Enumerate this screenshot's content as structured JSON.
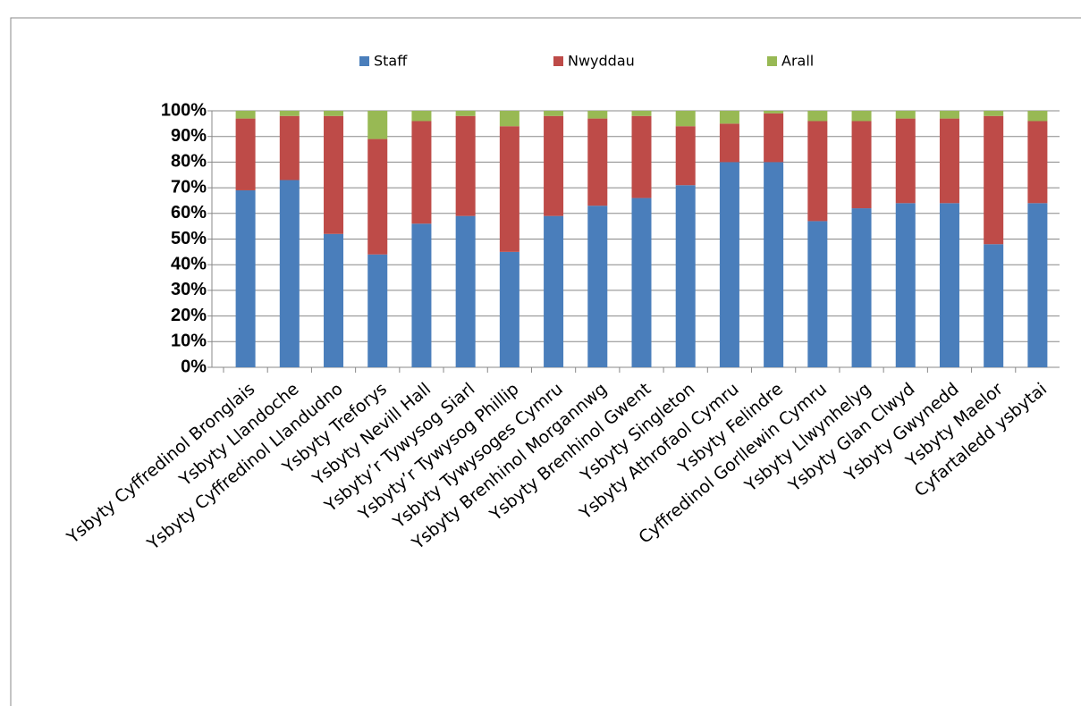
{
  "chart_data": {
    "type": "stacked_bar",
    "categories": [
      "Ysbyty Cyffredinol Bronglais",
      "Ysbyty Llandoche",
      "Ysbyty Cyffredinol Llandudno",
      "Ysbyty Treforys",
      "Ysbyty Nevill Hall",
      "Ysbyty’r Tywysog Siarl",
      "Ysbyty’r Tywysog Phillip",
      "Ysbyty Tywysoges Cymru",
      "Ysbyty Brenhinol Morgannwg",
      "Ysbyty Brenhinol Gwent",
      "Ysbyty Singleton",
      "Ysbyty Athrofaol Cymru",
      "Ysbyty Felindre",
      "Cyffredinol Gorllewin Cymru",
      "Ysbyty Llwynhelyg",
      "Ysbyty Glan Clwyd",
      "Ysbyty Gwynedd",
      "Ysbyty Maelor",
      "Cyfartaledd ysbytai"
    ],
    "series": [
      {
        "name": "Staff",
        "color": "#4a7ebb",
        "values": [
          69,
          73,
          52,
          44,
          56,
          59,
          45,
          59,
          63,
          66,
          71,
          80,
          80,
          57,
          62,
          64,
          64,
          48,
          64
        ]
      },
      {
        "name": "Nwyddau",
        "color": "#be4b48",
        "values": [
          28,
          25,
          46,
          45,
          40,
          39,
          49,
          39,
          34,
          32,
          23,
          15,
          19,
          39,
          34,
          33,
          33,
          50,
          32
        ]
      },
      {
        "name": "Arall",
        "color": "#98b954",
        "values": [
          3,
          2,
          2,
          11,
          4,
          2,
          6,
          2,
          3,
          2,
          6,
          5,
          1,
          4,
          4,
          3,
          3,
          2,
          4
        ]
      }
    ],
    "ylim": [
      0,
      100
    ],
    "yticks": [
      {
        "value": 0,
        "label": "0%"
      },
      {
        "value": 10,
        "label": "10%"
      },
      {
        "value": 20,
        "label": "20%"
      },
      {
        "value": 30,
        "label": "30%"
      },
      {
        "value": 40,
        "label": "40%"
      },
      {
        "value": 50,
        "label": "50%"
      },
      {
        "value": 60,
        "label": "60%"
      },
      {
        "value": 70,
        "label": "70%"
      },
      {
        "value": 80,
        "label": "80%"
      },
      {
        "value": 90,
        "label": "90%"
      },
      {
        "value": 100,
        "label": "100%"
      }
    ],
    "grid": true,
    "legend": "top"
  }
}
